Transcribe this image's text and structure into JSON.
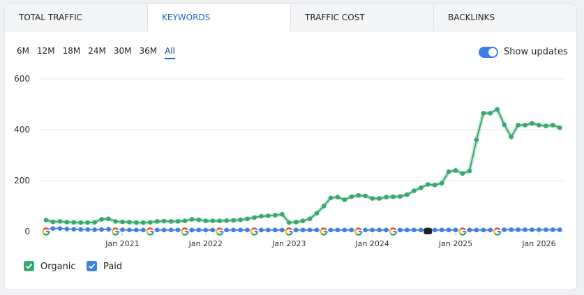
{
  "tabs": [
    "TOTAL TRAFFIC",
    "KEYWORDS",
    "TRAFFIC COST",
    "BACKLINKS"
  ],
  "active_tab": 1,
  "periods": [
    "6M",
    "12M",
    "18M",
    "24M",
    "30M",
    "36M",
    "All"
  ],
  "active_period": 6,
  "show_updates": {
    "label": "Show updates",
    "on": true
  },
  "chart_data": {
    "type": "line",
    "x": [
      "2020-02",
      "2020-03",
      "2020-04",
      "2020-05",
      "2020-06",
      "2020-07",
      "2020-08",
      "2020-09",
      "2020-10",
      "2020-11",
      "2020-12",
      "2021-01",
      "2021-02",
      "2021-03",
      "2021-04",
      "2021-05",
      "2021-06",
      "2021-07",
      "2021-08",
      "2021-09",
      "2021-10",
      "2021-11",
      "2021-12",
      "2022-01",
      "2022-02",
      "2022-03",
      "2022-04",
      "2022-05",
      "2022-06",
      "2022-07",
      "2022-08",
      "2022-09",
      "2022-10",
      "2022-11",
      "2022-12",
      "2023-01",
      "2023-02",
      "2023-03",
      "2023-04",
      "2023-05",
      "2023-06",
      "2023-07",
      "2023-08",
      "2023-09",
      "2023-10",
      "2023-11",
      "2023-12",
      "2024-01",
      "2024-02",
      "2024-03",
      "2024-04",
      "2024-05",
      "2024-06",
      "2024-07",
      "2024-08",
      "2024-09",
      "2024-10",
      "2024-11",
      "2024-12",
      "2025-01",
      "2025-02",
      "2025-03",
      "2025-04",
      "2025-05",
      "2025-06",
      "2025-07",
      "2025-08",
      "2025-09",
      "2025-10",
      "2025-11",
      "2025-12",
      "2026-01",
      "2026-02",
      "2026-03",
      "2026-04"
    ],
    "series": [
      {
        "name": "Organic",
        "color": "#37a96e",
        "values": [
          45,
          38,
          40,
          37,
          36,
          35,
          35,
          36,
          48,
          50,
          40,
          38,
          37,
          35,
          35,
          36,
          40,
          41,
          40,
          40,
          42,
          48,
          46,
          42,
          42,
          42,
          43,
          44,
          46,
          50,
          55,
          60,
          62,
          64,
          68,
          35,
          37,
          42,
          50,
          72,
          100,
          132,
          135,
          125,
          137,
          142,
          140,
          130,
          130,
          135,
          137,
          138,
          145,
          160,
          172,
          185,
          183,
          190,
          235,
          240,
          228,
          238,
          360,
          465,
          465,
          480,
          420,
          372,
          418,
          418,
          425,
          418,
          415,
          418,
          408
        ]
      },
      {
        "name": "Paid",
        "color": "#3d7fe6",
        "values": [
          10,
          12,
          12,
          10,
          9,
          8,
          8,
          7,
          8,
          9,
          8,
          7,
          6,
          6,
          6,
          6,
          6,
          6,
          6,
          6,
          6,
          6,
          6,
          6,
          6,
          6,
          6,
          6,
          6,
          6,
          6,
          6,
          6,
          6,
          6,
          6,
          6,
          6,
          6,
          6,
          6,
          6,
          6,
          6,
          6,
          6,
          6,
          6,
          6,
          6,
          6,
          6,
          6,
          6,
          6,
          6,
          6,
          6,
          6,
          6,
          6,
          6,
          6,
          6,
          6,
          6,
          7,
          7,
          7,
          7,
          7,
          7,
          7,
          7,
          7
        ]
      }
    ],
    "ylim": [
      0,
      600
    ],
    "yticks": [
      0,
      200,
      400,
      600
    ],
    "xticks": [
      {
        "value": "2021-01",
        "label": "Jan 2021"
      },
      {
        "value": "2022-01",
        "label": "Jan 2022"
      },
      {
        "value": "2023-01",
        "label": "Jan 2023"
      },
      {
        "value": "2024-01",
        "label": "Jan 2024"
      },
      {
        "value": "2025-01",
        "label": "Jan 2025"
      },
      {
        "value": "2026-01",
        "label": "Jan 2026"
      }
    ],
    "grid": true,
    "updates": [
      {
        "date": "2020-02",
        "kind": "google"
      },
      {
        "date": "2020-12",
        "kind": "google"
      },
      {
        "date": "2021-05",
        "kind": "google"
      },
      {
        "date": "2021-10",
        "kind": "google"
      },
      {
        "date": "2022-03",
        "kind": "google"
      },
      {
        "date": "2022-08",
        "kind": "google"
      },
      {
        "date": "2023-01",
        "kind": "google"
      },
      {
        "date": "2023-06",
        "kind": "google"
      },
      {
        "date": "2023-11",
        "kind": "google"
      },
      {
        "date": "2024-04",
        "kind": "google"
      },
      {
        "date": "2024-09",
        "kind": "database"
      },
      {
        "date": "2025-02",
        "kind": "google"
      },
      {
        "date": "2025-07",
        "kind": "google"
      }
    ]
  }
}
